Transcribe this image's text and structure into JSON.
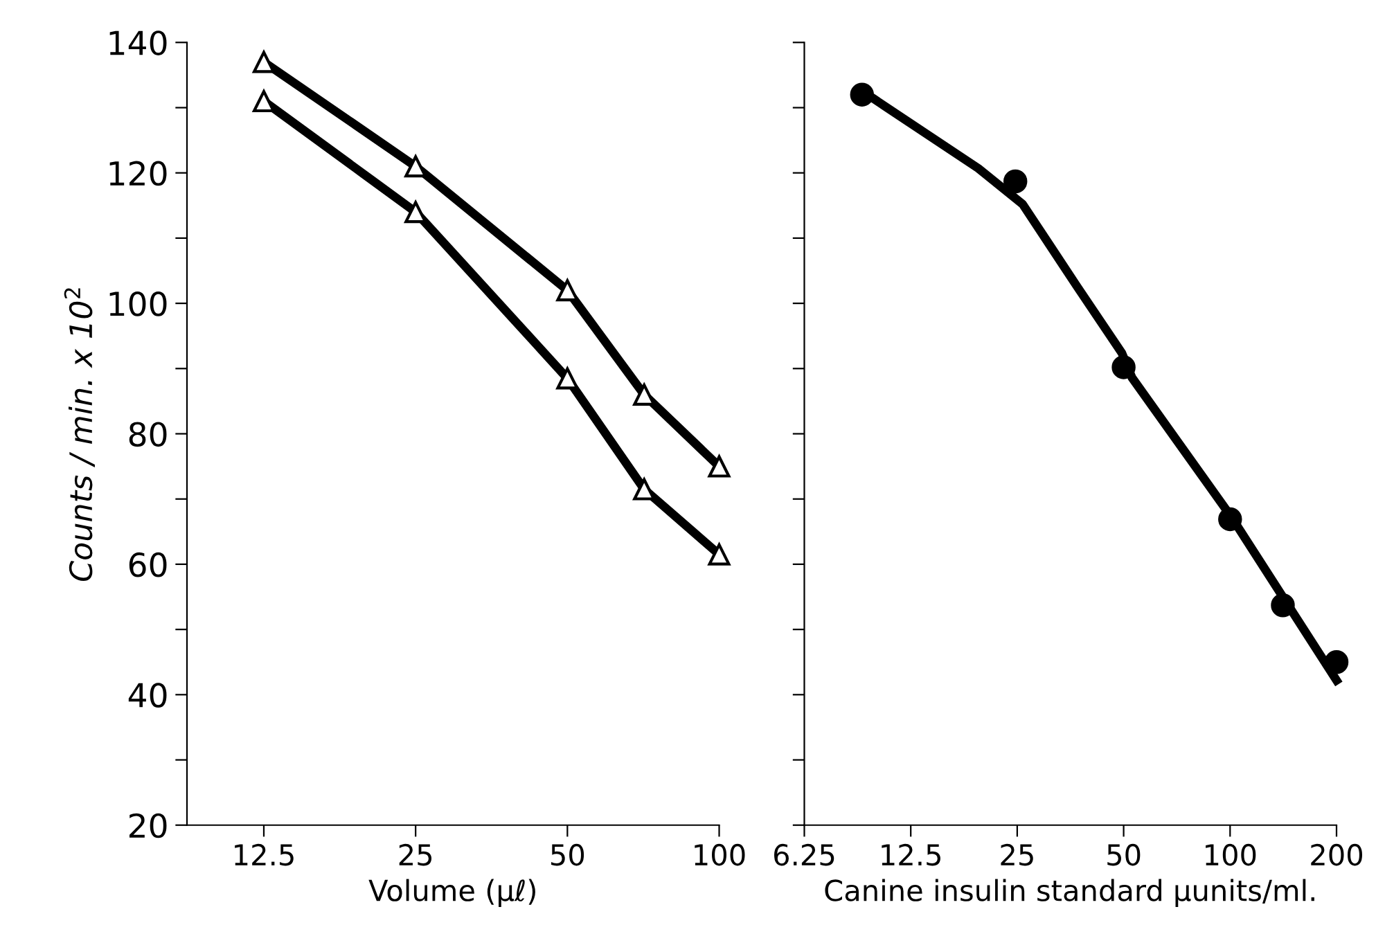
{
  "chart_data": [
    {
      "type": "line",
      "xlabel": "Volume (μℓ)",
      "ylabel": "Counts / min. x 10$^{2}$",
      "log": "x",
      "marker": "triangle",
      "line_style": "solid",
      "grid": false,
      "xlim": [
        8.8,
        100
      ],
      "xticks": [
        12.5,
        25,
        50,
        100
      ],
      "ylim": [
        20,
        140
      ],
      "yticks": [
        20,
        {
          "value": 30,
          "label": null
        },
        40,
        {
          "value": 50,
          "label": null
        },
        60,
        {
          "value": 70,
          "label": null
        },
        80,
        {
          "value": 90,
          "label": null
        },
        100,
        {
          "value": 110,
          "label": null
        },
        120,
        {
          "value": 130,
          "label": null
        },
        140
      ],
      "series": [
        {
          "color": "#000000",
          "x": [
            12.5,
            25,
            50,
            71,
            100
          ],
          "values": [
            137,
            121,
            102,
            86,
            75
          ]
        },
        {
          "color": "#000000",
          "x": [
            12.5,
            25,
            50,
            71,
            100
          ],
          "values": [
            131,
            114,
            88.5,
            71.5,
            61.5
          ]
        }
      ]
    },
    {
      "type": "scatter",
      "xlabel": "Canine insulin standard μunits/ml.",
      "log": "x",
      "marker": "circle",
      "grid": false,
      "tick_labels": "x",
      "xlim": [
        6.25,
        200
      ],
      "xticks": [
        {
          "value": 6.25,
          "label": "6.25"
        },
        12.5,
        25,
        50,
        100,
        200
      ],
      "ylim": [
        20,
        140
      ],
      "yticks": [
        20,
        30,
        40,
        50,
        60,
        70,
        80,
        90,
        100,
        110,
        120,
        130,
        140
      ],
      "series": [
        {
          "color": "#000000",
          "x": [
            9.1,
            24.7,
            50,
            100,
            141,
            200
          ],
          "values": [
            132,
            118.7,
            90.2,
            66.9,
            53.7,
            45
          ]
        },
        {
          "type": "line",
          "marker": "none",
          "color": "#000000",
          "x": [
            9.8,
            19.4,
            25.9,
            36.9,
            49.4,
            52.8,
            101,
            200
          ],
          "values": [
            131.4,
            120.7,
            115.2,
            102.6,
            92.4,
            88.6,
            67.2,
            42.2
          ]
        }
      ]
    }
  ]
}
